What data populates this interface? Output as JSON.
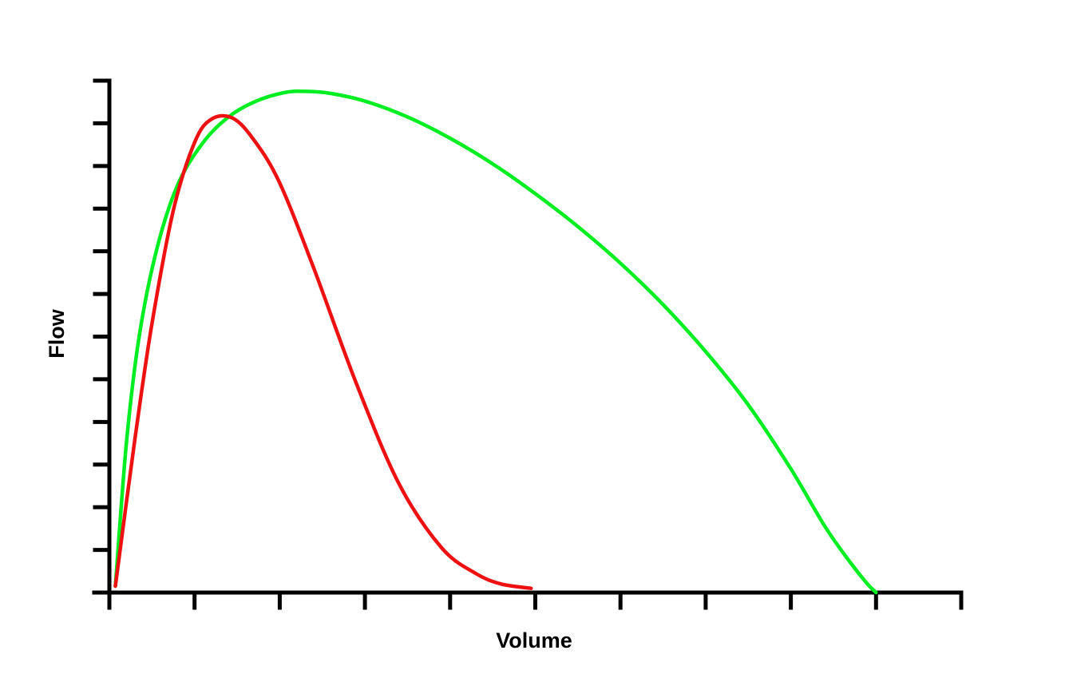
{
  "chart_data": {
    "type": "line",
    "title": "",
    "xlabel": "Volume",
    "ylabel": "Flow",
    "xlim": [
      0,
      10
    ],
    "ylim": [
      0,
      12
    ],
    "x_ticks": 10,
    "y_ticks": 12,
    "tick_labels_shown": false,
    "grid": false,
    "legend": "none",
    "series": [
      {
        "color": "#00ee22",
        "x": [
          0.07,
          0.2,
          0.35,
          0.55,
          0.8,
          1.1,
          1.4,
          1.7,
          2.05,
          2.3,
          2.6,
          3.0,
          3.5,
          4.0,
          4.5,
          5.0,
          5.5,
          6.0,
          6.5,
          7.0,
          7.5,
          8.0,
          8.4,
          8.7,
          8.9,
          9.0
        ],
        "y": [
          0.15,
          3.5,
          6.0,
          8.0,
          9.55,
          10.55,
          11.15,
          11.5,
          11.72,
          11.75,
          11.7,
          11.52,
          11.15,
          10.65,
          10.05,
          9.35,
          8.58,
          7.72,
          6.75,
          5.65,
          4.4,
          2.9,
          1.55,
          0.7,
          0.2,
          0.0
        ]
      },
      {
        "color": "#ee1111",
        "x": [
          0.07,
          0.3,
          0.5,
          0.75,
          1.0,
          1.2,
          1.45,
          1.7,
          2.0,
          2.4,
          2.9,
          3.4,
          3.9,
          4.3,
          4.6,
          4.95
        ],
        "y": [
          0.15,
          3.6,
          6.3,
          8.95,
          10.55,
          11.1,
          11.12,
          10.6,
          9.6,
          7.6,
          4.9,
          2.55,
          1.05,
          0.45,
          0.2,
          0.1
        ]
      }
    ]
  }
}
